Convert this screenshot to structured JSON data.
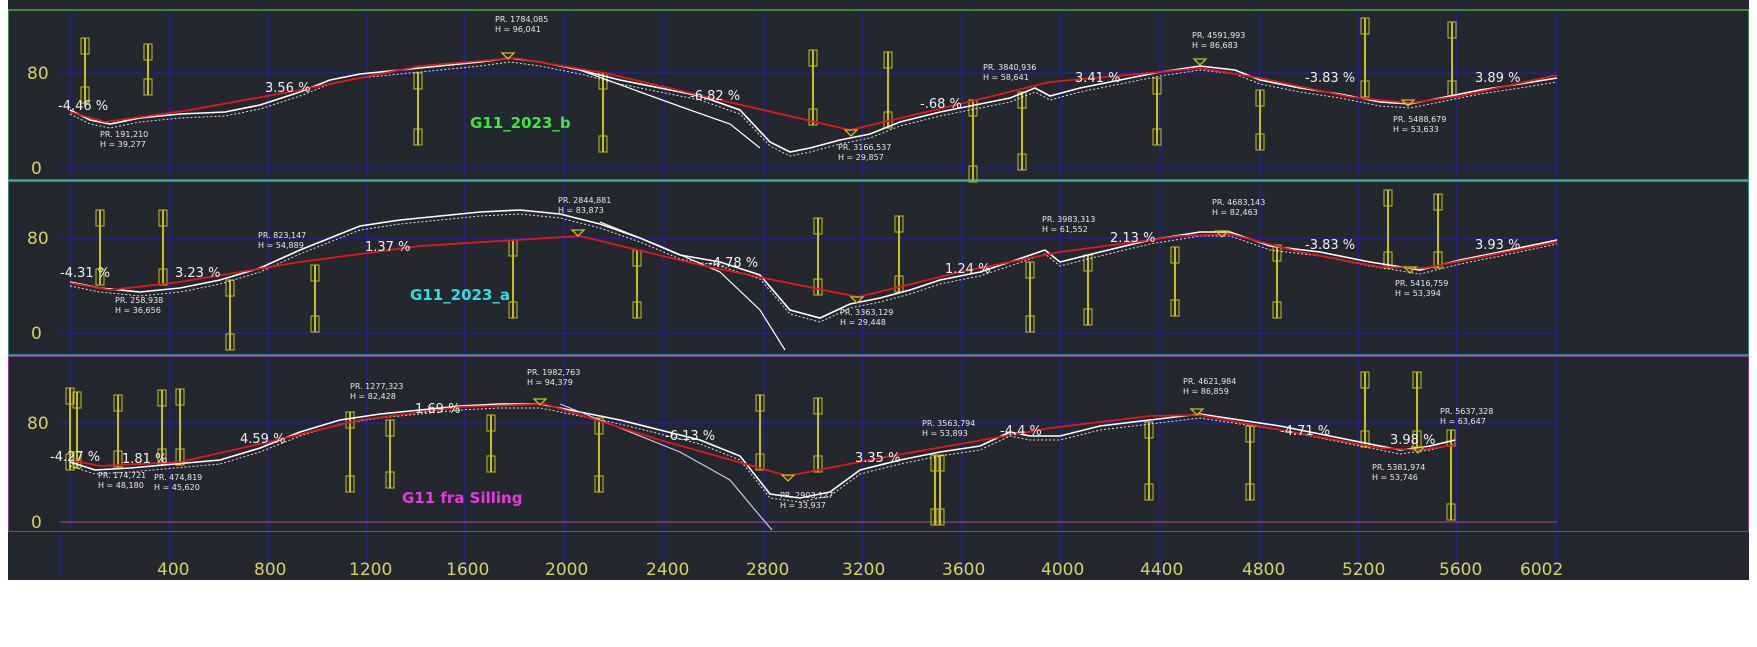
{
  "axis": {
    "x_ticks": [
      "400",
      "800",
      "1200",
      "1600",
      "2000",
      "2400",
      "2800",
      "3200",
      "3600",
      "4000",
      "4400",
      "4800",
      "5200",
      "5600",
      "6002"
    ],
    "y_ticks": [
      "80",
      "0"
    ]
  },
  "colors": {
    "background": "#23272e",
    "grid": "#1d1dcc",
    "terrain": "#ffffff",
    "profile": "#e01818",
    "marker": "#c8c018",
    "label": "#d8d060"
  },
  "panels": [
    {
      "title": "G11_2023_b",
      "title_color": "#3ee83e",
      "border_color": "#4aa84a",
      "grades": [
        "-4.46 %",
        "3.56 %",
        "-6.82 %",
        "-.68 %",
        "3.41 %",
        "-3.83 %",
        "3.89 %"
      ],
      "points": [
        {
          "pr": "PR. 191,210",
          "h": "H = 39,277"
        },
        {
          "pr": "PR. 1784,085",
          "h": "H = 96,041"
        },
        {
          "pr": "PR. 3166,537",
          "h": "H = 29,857"
        },
        {
          "pr": "PR. 3840,936",
          "h": "H = 58,641"
        },
        {
          "pr": "PR. 4591,993",
          "h": "H = 86,683"
        },
        {
          "pr": "PR. 5488,679",
          "h": "H = 53,633"
        }
      ]
    },
    {
      "title": "G11_2023_a",
      "title_color": "#2ee0e0",
      "border_color": "#3aaab0",
      "grades": [
        "-4.31 %",
        "3.23 %",
        "1.37 %",
        "-4.78 %",
        "1.24 %",
        "2.13 %",
        "-3.83 %",
        "3.93 %"
      ],
      "points": [
        {
          "pr": "PR. 258,938",
          "h": "H = 36,656"
        },
        {
          "pr": "PR. 823,147",
          "h": "H = 54,889"
        },
        {
          "pr": "PR. 2844,881",
          "h": "H = 83,873"
        },
        {
          "pr": "PR. 3363,129",
          "h": "H = 29,448"
        },
        {
          "pr": "PR. 3983,313",
          "h": "H = 61,552"
        },
        {
          "pr": "PR. 4683,143",
          "h": "H = 82,463"
        },
        {
          "pr": "PR. 5416,759",
          "h": "H = 53,394"
        }
      ]
    },
    {
      "title": "G11 fra Silling",
      "title_color": "#e838e0",
      "border_color": "#b040b0",
      "grades": [
        "-4.27 %",
        "1.81 %",
        "4.59 %",
        "1.69 %",
        "-6.13 %",
        "3.35 %",
        "-4.4 %",
        "-4.71 %",
        "3.98 %"
      ],
      "points": [
        {
          "pr": "PR. 174,721",
          "h": "H = 48,180"
        },
        {
          "pr": "PR. 474,819",
          "h": "H = 45,620"
        },
        {
          "pr": "PR. 1277,323",
          "h": "H = 82,428"
        },
        {
          "pr": "PR. 1982,763",
          "h": "H = 94,379"
        },
        {
          "pr": "PR. 2903,127",
          "h": "H = 33,937"
        },
        {
          "pr": "PR. 3563,794",
          "h": "H = 53,893"
        },
        {
          "pr": "PR. 4621,984",
          "h": "H = 86,859"
        },
        {
          "pr": "PR. 5381,974",
          "h": "H = 53,746"
        },
        {
          "pr": "PR. 5637,328",
          "h": "H = 63,647"
        }
      ]
    }
  ]
}
